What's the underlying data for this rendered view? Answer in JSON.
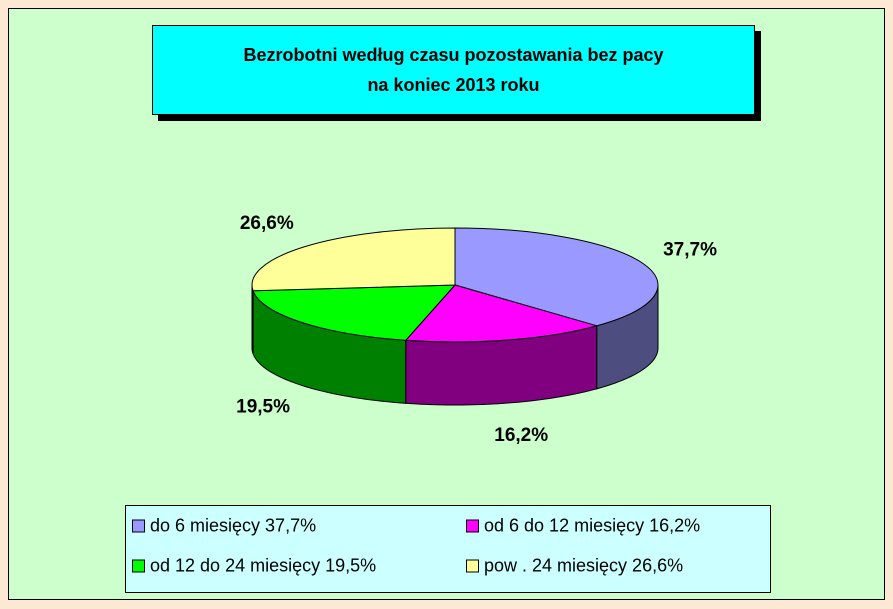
{
  "chart_data": {
    "type": "pie3d",
    "title": "Bezrobotni  według czasu pozostawania bez pacy\nna koniec 2013 roku",
    "categories": [
      "do 6 miesięcy 37,7%",
      "od 6 do 12 miesięcy 16,2%",
      "od 12 do 24 miesięcy 19,5%",
      "pow . 24 miesięcy 26,6%"
    ],
    "values": [
      37.7,
      16.2,
      19.5,
      26.6
    ],
    "value_labels": [
      "37,7%",
      "16,2%",
      "19,5%",
      "26,6%"
    ],
    "colors": [
      "#9999ff",
      "#ff00ff",
      "#00ff00",
      "#ffff99"
    ],
    "legend": "bottom"
  }
}
